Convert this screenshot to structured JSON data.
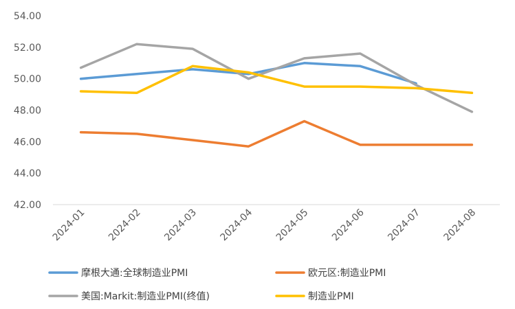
{
  "chart_data": {
    "type": "line",
    "title": "",
    "xlabel": "",
    "ylabel": "",
    "ylim": [
      42,
      54
    ],
    "yticks": [
      "42.00",
      "44.00",
      "46.00",
      "48.00",
      "50.00",
      "52.00",
      "54.00"
    ],
    "categories": [
      "2024-01",
      "2024-02",
      "2024-03",
      "2024-04",
      "2024-05",
      "2024-06",
      "2024-07",
      "2024-08"
    ],
    "grid": false,
    "legend": "bottom",
    "series": [
      {
        "name": "摩根大通:全球制造业PMI",
        "color": "#5B9BD5",
        "values": [
          50.0,
          50.3,
          50.6,
          50.3,
          51.0,
          50.8,
          49.7,
          null
        ]
      },
      {
        "name": "欧元区:制造业PMI",
        "color": "#ED7D31",
        "values": [
          46.6,
          46.5,
          46.1,
          45.7,
          47.3,
          45.8,
          45.8,
          45.8
        ]
      },
      {
        "name": "美国:Markit:制造业PMI(终值)",
        "color": "#A5A5A5",
        "values": [
          50.7,
          52.2,
          51.9,
          50.0,
          51.3,
          51.6,
          49.6,
          47.9
        ]
      },
      {
        "name": "制造业PMI",
        "color": "#FFC000",
        "values": [
          49.2,
          49.1,
          50.8,
          50.4,
          49.5,
          49.5,
          49.4,
          49.1
        ]
      }
    ]
  }
}
